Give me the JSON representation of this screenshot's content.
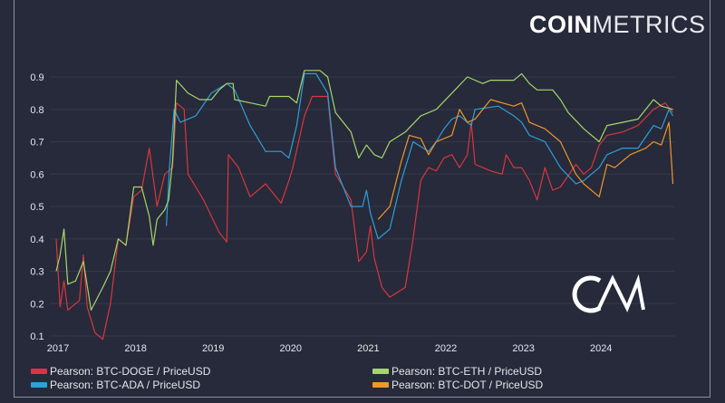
{
  "brand": {
    "bold": "COIN",
    "light": "METRICS",
    "watermark": "CM"
  },
  "chart_data": {
    "type": "line",
    "title": "",
    "xlabel": "",
    "ylabel": "",
    "xlim": [
      2017,
      2025.0
    ],
    "ylim": [
      0.08,
      0.93
    ],
    "x_ticks": [
      "2017",
      "2018",
      "2019",
      "2020",
      "2021",
      "2022",
      "2023",
      "2024"
    ],
    "y_ticks": [
      "0.1",
      "0.2",
      "0.3",
      "0.4",
      "0.5",
      "0.6",
      "0.7",
      "0.8",
      "0.9"
    ],
    "grid": true,
    "legend_position": "bottom",
    "series": [
      {
        "name": "Pearson: BTC-DOGE / PriceUSD",
        "color": "#d9363e",
        "x": [
          2017.0,
          2017.05,
          2017.1,
          2017.15,
          2017.3,
          2017.35,
          2017.4,
          2017.5,
          2017.6,
          2017.7,
          2017.8,
          2017.9,
          2018.0,
          2018.1,
          2018.2,
          2018.3,
          2018.4,
          2018.5,
          2018.55,
          2018.65,
          2018.7,
          2018.9,
          2019.1,
          2019.2,
          2019.22,
          2019.35,
          2019.5,
          2019.7,
          2019.9,
          2020.0,
          2020.05,
          2020.2,
          2020.3,
          2020.5,
          2020.6,
          2020.8,
          2020.9,
          2021.0,
          2021.05,
          2021.1,
          2021.2,
          2021.3,
          2021.5,
          2021.6,
          2021.7,
          2021.8,
          2021.9,
          2022.0,
          2022.1,
          2022.2,
          2022.3,
          2022.35,
          2022.4,
          2022.6,
          2022.75,
          2022.8,
          2022.9,
          2023.0,
          2023.1,
          2023.2,
          2023.3,
          2023.4,
          2023.5,
          2023.7,
          2023.8,
          2023.9,
          2024.0,
          2024.1,
          2024.3,
          2024.5,
          2024.7,
          2024.85,
          2024.95
        ],
        "y": [
          0.4,
          0.19,
          0.27,
          0.18,
          0.21,
          0.35,
          0.19,
          0.11,
          0.09,
          0.2,
          0.4,
          0.38,
          0.53,
          0.55,
          0.68,
          0.5,
          0.6,
          0.62,
          0.82,
          0.8,
          0.6,
          0.52,
          0.42,
          0.39,
          0.66,
          0.62,
          0.53,
          0.57,
          0.51,
          0.58,
          0.62,
          0.78,
          0.84,
          0.84,
          0.6,
          0.52,
          0.33,
          0.36,
          0.44,
          0.34,
          0.25,
          0.22,
          0.25,
          0.4,
          0.58,
          0.62,
          0.61,
          0.65,
          0.66,
          0.62,
          0.66,
          0.76,
          0.63,
          0.61,
          0.6,
          0.66,
          0.62,
          0.62,
          0.58,
          0.52,
          0.62,
          0.55,
          0.56,
          0.63,
          0.6,
          0.62,
          0.69,
          0.72,
          0.73,
          0.75,
          0.8,
          0.82,
          0.79
        ]
      },
      {
        "name": "Pearson: BTC-ADA / PriceUSD",
        "color": "#2f9fd8",
        "x": [
          2018.42,
          2018.46,
          2018.52,
          2018.6,
          2018.8,
          2019.0,
          2019.2,
          2019.3,
          2019.5,
          2019.7,
          2019.9,
          2020.0,
          2020.1,
          2020.2,
          2020.35,
          2020.5,
          2020.6,
          2020.8,
          2020.95,
          2021.0,
          2021.05,
          2021.15,
          2021.3,
          2021.45,
          2021.6,
          2021.8,
          2021.9,
          2022.0,
          2022.1,
          2022.2,
          2022.35,
          2022.4,
          2022.7,
          2022.9,
          2023.0,
          2023.1,
          2023.3,
          2023.5,
          2023.7,
          2023.8,
          2024.0,
          2024.1,
          2024.3,
          2024.5,
          2024.7,
          2024.8,
          2024.9,
          2024.95
        ],
        "y": [
          0.44,
          0.62,
          0.8,
          0.76,
          0.78,
          0.85,
          0.88,
          0.86,
          0.75,
          0.67,
          0.67,
          0.65,
          0.75,
          0.91,
          0.91,
          0.85,
          0.62,
          0.5,
          0.5,
          0.55,
          0.48,
          0.4,
          0.43,
          0.58,
          0.7,
          0.67,
          0.7,
          0.74,
          0.77,
          0.78,
          0.75,
          0.8,
          0.81,
          0.78,
          0.76,
          0.72,
          0.7,
          0.62,
          0.57,
          0.58,
          0.62,
          0.66,
          0.68,
          0.68,
          0.75,
          0.74,
          0.8,
          0.78
        ]
      },
      {
        "name": "Pearson: BTC-ETH / PriceUSD",
        "color": "#a6d66a",
        "x": [
          2017.0,
          2017.05,
          2017.1,
          2017.15,
          2017.25,
          2017.35,
          2017.45,
          2017.6,
          2017.7,
          2017.8,
          2017.9,
          2018.0,
          2018.1,
          2018.2,
          2018.25,
          2018.3,
          2018.4,
          2018.45,
          2018.5,
          2018.55,
          2018.7,
          2018.85,
          2019.0,
          2019.1,
          2019.2,
          2019.28,
          2019.3,
          2019.5,
          2019.7,
          2019.75,
          2019.9,
          2020.0,
          2020.1,
          2020.2,
          2020.4,
          2020.5,
          2020.6,
          2020.8,
          2020.9,
          2021.0,
          2021.1,
          2021.2,
          2021.3,
          2021.5,
          2021.7,
          2021.9,
          2022.1,
          2022.3,
          2022.5,
          2022.6,
          2022.9,
          2023.0,
          2023.1,
          2023.2,
          2023.4,
          2023.5,
          2023.6,
          2023.8,
          2024.0,
          2024.1,
          2024.3,
          2024.5,
          2024.7,
          2024.8,
          2024.95
        ],
        "y": [
          0.3,
          0.35,
          0.43,
          0.26,
          0.27,
          0.33,
          0.18,
          0.25,
          0.3,
          0.4,
          0.38,
          0.56,
          0.56,
          0.47,
          0.38,
          0.46,
          0.49,
          0.52,
          0.64,
          0.89,
          0.85,
          0.83,
          0.83,
          0.86,
          0.88,
          0.88,
          0.83,
          0.82,
          0.81,
          0.84,
          0.84,
          0.84,
          0.82,
          0.92,
          0.92,
          0.9,
          0.79,
          0.73,
          0.65,
          0.69,
          0.66,
          0.65,
          0.7,
          0.73,
          0.78,
          0.8,
          0.85,
          0.9,
          0.88,
          0.89,
          0.89,
          0.91,
          0.88,
          0.86,
          0.86,
          0.83,
          0.79,
          0.74,
          0.7,
          0.75,
          0.76,
          0.77,
          0.83,
          0.81,
          0.8
        ]
      },
      {
        "name": "Pearson: BTC-DOT / PriceUSD",
        "color": "#f0962a",
        "x": [
          2021.15,
          2021.3,
          2021.45,
          2021.55,
          2021.7,
          2021.8,
          2021.9,
          2022.1,
          2022.2,
          2022.3,
          2022.4,
          2022.6,
          2022.9,
          2023.0,
          2023.1,
          2023.3,
          2023.5,
          2023.7,
          2023.8,
          2024.0,
          2024.1,
          2024.2,
          2024.4,
          2024.6,
          2024.7,
          2024.8,
          2024.9,
          2024.95
        ],
        "y": [
          0.46,
          0.5,
          0.64,
          0.72,
          0.71,
          0.66,
          0.7,
          0.72,
          0.8,
          0.76,
          0.77,
          0.83,
          0.81,
          0.82,
          0.76,
          0.74,
          0.7,
          0.6,
          0.57,
          0.53,
          0.63,
          0.62,
          0.66,
          0.68,
          0.7,
          0.69,
          0.76,
          0.57
        ]
      }
    ]
  }
}
